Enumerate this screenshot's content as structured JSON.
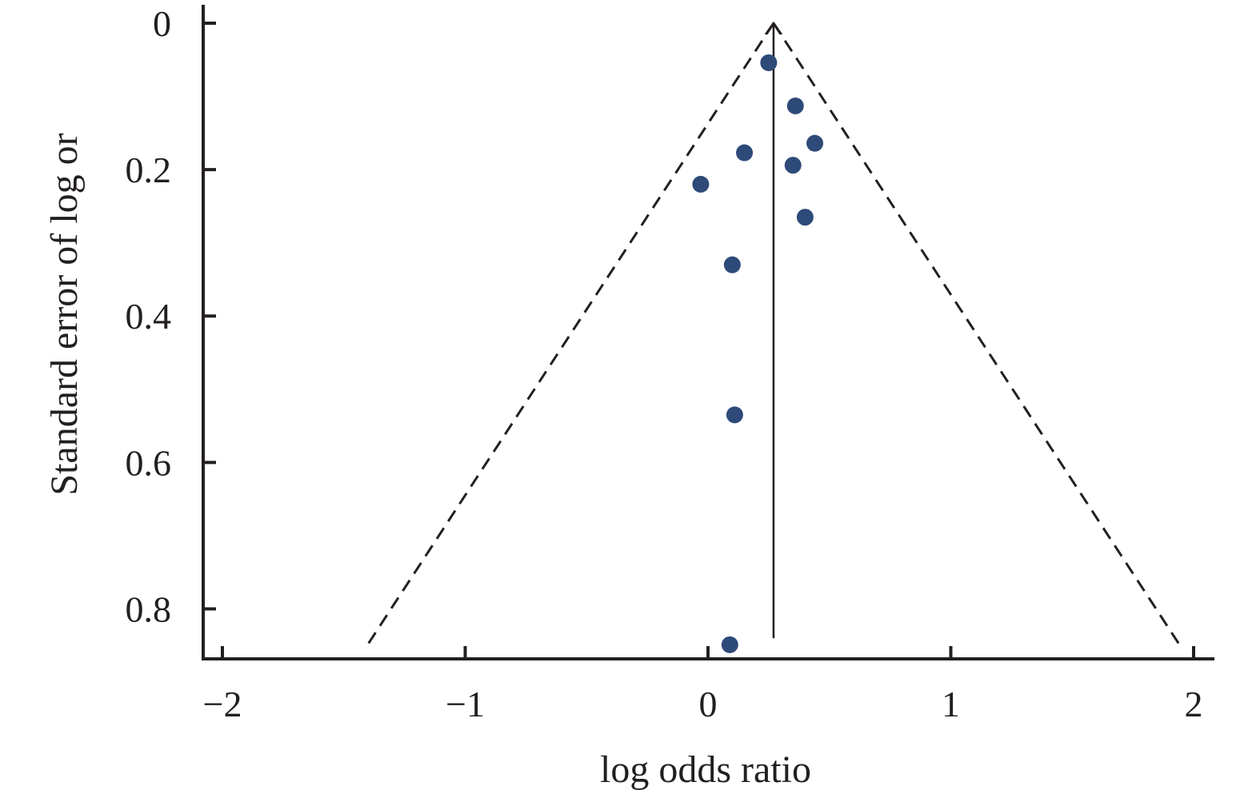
{
  "chart_data": {
    "type": "scatter",
    "title": "",
    "xlabel": "log odds ratio",
    "ylabel": "Standard error of log or",
    "xlim": [
      -2.07,
      2.07
    ],
    "ylim": [
      0,
      0.87
    ],
    "y_inverted": true,
    "grid": false,
    "xticks": [
      -2,
      -1,
      0,
      1,
      2
    ],
    "xtick_labels": [
      "−2",
      "−1",
      "0",
      "1",
      "2"
    ],
    "yticks": [
      0,
      0.2,
      0.4,
      0.6,
      0.8
    ],
    "ytick_labels": [
      "0",
      "0.2",
      "0.4",
      "0.6",
      "0.8"
    ],
    "pooled_estimate": 0.27,
    "funnel_limits": {
      "left": [
        [
          0.27,
          0.0
        ],
        [
          -1.4,
          0.848
        ]
      ],
      "right": [
        [
          0.27,
          0.0
        ],
        [
          1.94,
          0.848
        ]
      ]
    },
    "points": [
      {
        "x": 0.25,
        "y": 0.054
      },
      {
        "x": 0.36,
        "y": 0.113
      },
      {
        "x": 0.44,
        "y": 0.164
      },
      {
        "x": 0.15,
        "y": 0.177
      },
      {
        "x": 0.35,
        "y": 0.194
      },
      {
        "x": -0.03,
        "y": 0.22
      },
      {
        "x": 0.4,
        "y": 0.265
      },
      {
        "x": 0.1,
        "y": 0.33
      },
      {
        "x": 0.11,
        "y": 0.535
      },
      {
        "x": 0.09,
        "y": 0.849
      }
    ],
    "point_color": "#2e4a79",
    "axis_color": "#231f20"
  }
}
